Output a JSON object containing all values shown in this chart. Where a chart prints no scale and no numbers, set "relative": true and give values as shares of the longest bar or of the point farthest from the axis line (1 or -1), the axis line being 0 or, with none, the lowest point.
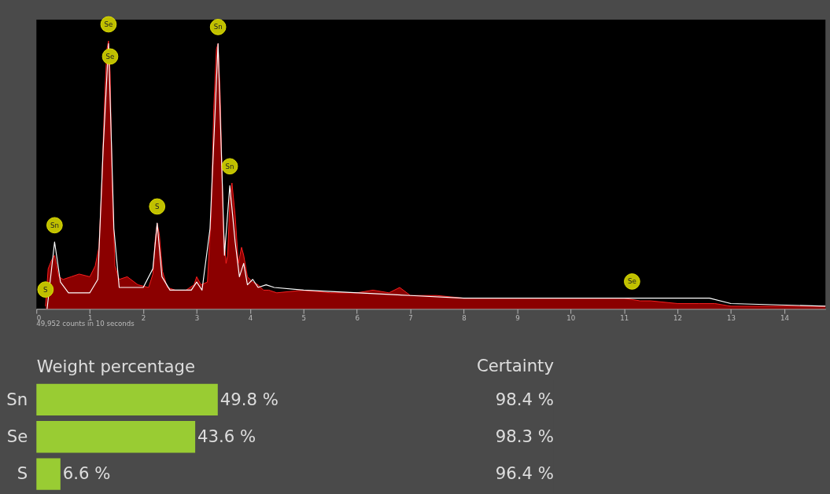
{
  "chart_data": [
    {
      "type": "area",
      "relative": true,
      "xlim": [
        0,
        14.77
      ],
      "xticks": [
        0,
        1,
        2,
        3,
        4,
        5,
        6,
        7,
        8,
        9,
        10,
        11,
        12,
        13,
        14
      ],
      "grid": false,
      "x": [
        0.17,
        0.22,
        0.28,
        0.34,
        0.42,
        0.5,
        0.65,
        0.8,
        1.0,
        1.1,
        1.17,
        1.22,
        1.28,
        1.32,
        1.35,
        1.38,
        1.42,
        1.47,
        1.55,
        1.7,
        1.9,
        2.1,
        2.18,
        2.22,
        2.26,
        2.3,
        2.36,
        2.45,
        2.6,
        2.8,
        2.95,
        3.0,
        3.08,
        3.2,
        3.27,
        3.32,
        3.37,
        3.4,
        3.44,
        3.5,
        3.55,
        3.58,
        3.62,
        3.66,
        3.72,
        3.78,
        3.84,
        3.88,
        3.95,
        4.05,
        4.15,
        4.25,
        4.35,
        4.5,
        5,
        5.5,
        6,
        6.3,
        6.6,
        6.8,
        7,
        7.5,
        8,
        8.5,
        9,
        9.5,
        10,
        10.5,
        11,
        11.3,
        11.5,
        12,
        12.4,
        12.7,
        13,
        13.5,
        14,
        14.5,
        14.77
      ],
      "series": [
        {
          "type": "area",
          "color": "#8b0000",
          "values": [
            0.01,
            0.15,
            0.18,
            0.2,
            0.12,
            0.11,
            0.12,
            0.13,
            0.12,
            0.16,
            0.23,
            0.45,
            0.8,
            0.97,
            1.0,
            0.88,
            0.45,
            0.16,
            0.11,
            0.12,
            0.09,
            0.08,
            0.13,
            0.25,
            0.32,
            0.28,
            0.14,
            0.08,
            0.07,
            0.07,
            0.09,
            0.12,
            0.09,
            0.1,
            0.35,
            0.75,
            0.97,
            0.99,
            0.8,
            0.3,
            0.17,
            0.2,
            0.4,
            0.47,
            0.35,
            0.17,
            0.23,
            0.2,
            0.12,
            0.1,
            0.09,
            0.07,
            0.07,
            0.06,
            0.07,
            0.06,
            0.06,
            0.07,
            0.06,
            0.08,
            0.05,
            0.05,
            0.04,
            0.04,
            0.04,
            0.04,
            0.04,
            0.04,
            0.04,
            0.03,
            0.03,
            0.02,
            0.02,
            0.02,
            0.01,
            0.01,
            0.01,
            0.01,
            0.01
          ]
        },
        {
          "type": "line",
          "color": "#ffffff",
          "x": [
            0.2,
            0.34,
            0.45,
            0.6,
            1.0,
            1.15,
            1.25,
            1.35,
            1.45,
            1.55,
            2.0,
            2.18,
            2.26,
            2.35,
            2.5,
            2.9,
            3.0,
            3.1,
            3.25,
            3.4,
            3.52,
            3.62,
            3.72,
            3.8,
            3.88,
            3.95,
            4.05,
            4.15,
            4.3,
            4.45,
            5,
            7,
            8,
            12.6,
            13,
            14.77
          ],
          "values": [
            0.0,
            0.25,
            0.1,
            0.06,
            0.06,
            0.11,
            0.6,
            0.99,
            0.3,
            0.08,
            0.08,
            0.15,
            0.32,
            0.12,
            0.07,
            0.07,
            0.1,
            0.07,
            0.3,
            0.99,
            0.2,
            0.46,
            0.25,
            0.12,
            0.17,
            0.09,
            0.11,
            0.08,
            0.09,
            0.08,
            0.07,
            0.05,
            0.04,
            0.04,
            0.02,
            0.01
          ]
        }
      ],
      "annotations": [
        {
          "text": "S",
          "x": 0.17,
          "y": 0.01
        },
        {
          "text": "Sn",
          "x": 0.34,
          "y": 0.25
        },
        {
          "text": "Se",
          "x": 1.35,
          "y": 1.0
        },
        {
          "text": "Se",
          "x": 1.38,
          "y": 0.88
        },
        {
          "text": "S",
          "x": 2.26,
          "y": 0.32
        },
        {
          "text": "Sn",
          "x": 3.4,
          "y": 0.99
        },
        {
          "text": "Sn",
          "x": 3.62,
          "y": 0.47
        },
        {
          "text": "Se",
          "x": 11.15,
          "y": 0.04
        },
        "49,952 counts in 10 seconds"
      ]
    },
    {
      "type": "bar",
      "orientation": "horizontal",
      "xlabel": "Weight percentage",
      "categories": [
        "Sn",
        "Se",
        "S"
      ],
      "values": [
        49.8,
        43.6,
        6.6
      ],
      "color": "#99cc33",
      "value_labels": [
        "49.8 %",
        "43.6 %",
        "6.6 %"
      ],
      "grid": false,
      "tick_labels": "y",
      "annotations": [
        "Certainty",
        "98.4 %",
        "98.3 %",
        "96.4 %"
      ]
    }
  ]
}
